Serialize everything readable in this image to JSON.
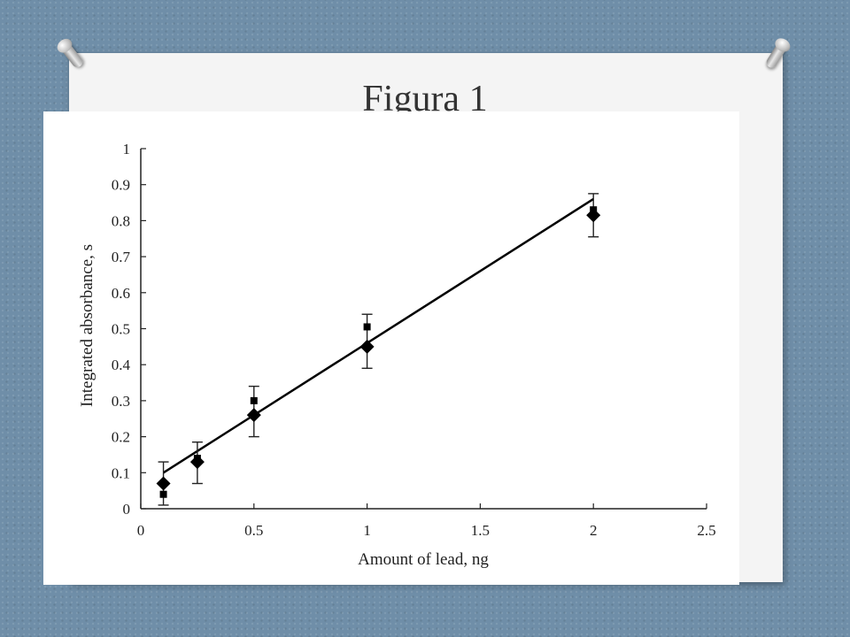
{
  "slide": {
    "title": "Figura 1"
  },
  "chart_data": {
    "type": "scatter",
    "xlabel": "Amount of lead, ng",
    "ylabel": "Integrated absorbance, s",
    "xlim": [
      0,
      2.5
    ],
    "ylim": [
      0,
      1
    ],
    "x_ticks": [
      0,
      0.5,
      1,
      1.5,
      2,
      2.5
    ],
    "x_tick_labels": [
      "0",
      "0.5",
      "1",
      "1.5",
      "2",
      "2.5"
    ],
    "y_ticks": [
      0,
      0.1,
      0.2,
      0.3,
      0.4,
      0.5,
      0.6,
      0.7,
      0.8,
      0.9,
      1
    ],
    "y_tick_labels": [
      "0",
      "0.1",
      "0.2",
      "0.3",
      "0.4",
      "0.5",
      "0.6",
      "0.7",
      "0.8",
      "0.9",
      "1"
    ],
    "grid": false,
    "legend": "none",
    "series": [
      {
        "marker": "diamond",
        "x": [
          0.1,
          0.25,
          0.5,
          1,
          2
        ],
        "y": [
          0.07,
          0.13,
          0.26,
          0.45,
          0.815
        ],
        "yerr_low": [
          0.01,
          0.07,
          0.2,
          0.39,
          0.755
        ],
        "yerr_high": [
          0.13,
          0.185,
          0.34,
          0.54,
          0.875
        ]
      },
      {
        "marker": "square",
        "x": [
          0.1,
          0.25,
          0.5,
          1,
          2
        ],
        "y": [
          0.04,
          0.14,
          0.3,
          0.505,
          0.83
        ]
      }
    ],
    "fit_line": {
      "x": [
        0.1,
        2
      ],
      "y": [
        0.1,
        0.86
      ]
    }
  }
}
